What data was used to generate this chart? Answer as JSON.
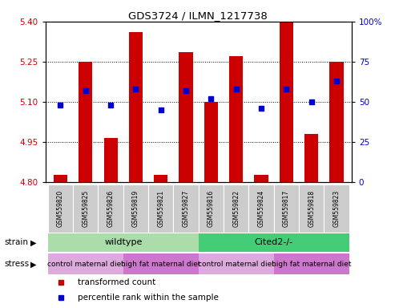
{
  "title": "GDS3724 / ILMN_1217738",
  "samples": [
    "GSM559820",
    "GSM559825",
    "GSM559826",
    "GSM559819",
    "GSM559821",
    "GSM559827",
    "GSM559816",
    "GSM559822",
    "GSM559824",
    "GSM559817",
    "GSM559818",
    "GSM559823"
  ],
  "red_values": [
    4.825,
    5.25,
    4.965,
    5.36,
    4.825,
    5.285,
    5.1,
    5.27,
    4.825,
    5.4,
    4.98,
    5.25
  ],
  "blue_values": [
    48,
    57,
    48,
    58,
    45,
    57,
    52,
    58,
    46,
    58,
    50,
    63
  ],
  "ylim_left": [
    4.8,
    5.4
  ],
  "ylim_right": [
    0,
    100
  ],
  "yticks_left": [
    4.8,
    4.95,
    5.1,
    5.25,
    5.4
  ],
  "yticks_right": [
    0,
    25,
    50,
    75,
    100
  ],
  "ytick_labels_right": [
    "0",
    "25",
    "50",
    "75",
    "100%"
  ],
  "hgrid_lines": [
    4.95,
    5.1,
    5.25
  ],
  "strain_groups": [
    {
      "label": "wildtype",
      "start": 0,
      "end": 6,
      "color": "#aaddaa"
    },
    {
      "label": "Cited2-/-",
      "start": 6,
      "end": 12,
      "color": "#44cc77"
    }
  ],
  "stress_groups": [
    {
      "label": "control maternal diet",
      "start": 0,
      "end": 3,
      "color": "#ddaadd"
    },
    {
      "label": "high fat maternal diet",
      "start": 3,
      "end": 6,
      "color": "#cc77cc"
    },
    {
      "label": "control maternal diet",
      "start": 6,
      "end": 9,
      "color": "#ddaadd"
    },
    {
      "label": "high fat maternal diet",
      "start": 9,
      "end": 12,
      "color": "#cc77cc"
    }
  ],
  "bar_color": "#CC0000",
  "dot_color": "#0000CC",
  "ylabel_left_color": "#CC0000",
  "ylabel_right_color": "#0000CC",
  "base_value": 4.8,
  "legend_items": [
    {
      "label": "transformed count",
      "color": "#CC0000"
    },
    {
      "label": "percentile rank within the sample",
      "color": "#0000CC"
    }
  ],
  "sample_box_color": "#cccccc",
  "fig_width": 4.93,
  "fig_height": 3.84,
  "fig_dpi": 100
}
